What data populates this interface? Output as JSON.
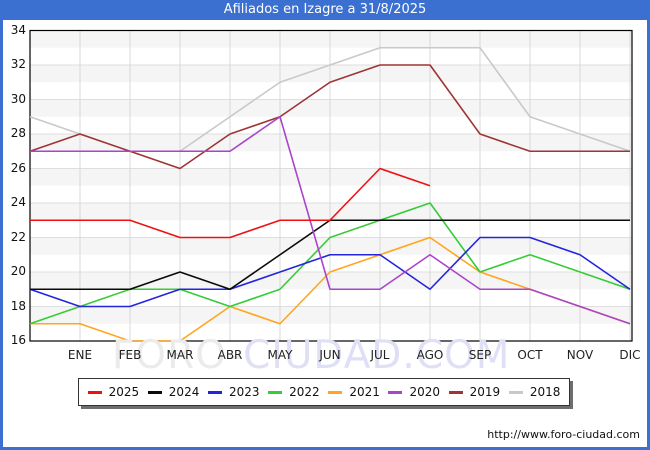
{
  "title": "Afiliados en Izagre a 31/8/2025",
  "watermark": {
    "part1": "FORO-",
    "part2": "CIUDAD.COM"
  },
  "footer_url": "http://www.foro-ciudad.com",
  "colors": {
    "frame_blue": "#3b70d0",
    "band_gray": "#f5f5f5",
    "grid_h": "#dedede",
    "grid_v": "#d8d8d8",
    "plot_border": "#000000"
  },
  "chart_data": {
    "type": "line",
    "title": "Afiliados en Izagre a 31/8/2025",
    "x_categories": [
      "ENE",
      "FEB",
      "MAR",
      "ABR",
      "MAY",
      "JUN",
      "JUL",
      "AGO",
      "SEP",
      "OCT",
      "NOV",
      "DIC"
    ],
    "y_ticks": [
      34,
      32,
      30,
      28,
      26,
      24,
      22,
      20,
      18,
      16
    ],
    "ylim": [
      16,
      34
    ],
    "grid": true,
    "legend_position": "bottom",
    "axis_start_note": "each line starts at the y-axis with the previous December value",
    "series": [
      {
        "name": "2025",
        "color": "#ee1111",
        "start": 23,
        "values": [
          23,
          23,
          22,
          22,
          23,
          23,
          26,
          25
        ]
      },
      {
        "name": "2024",
        "color": "#0a0a0a",
        "start": 19,
        "values": [
          19,
          19,
          20,
          19,
          21,
          23,
          23,
          23,
          23,
          23,
          23,
          23
        ]
      },
      {
        "name": "2023",
        "color": "#2424dd",
        "start": 19,
        "values": [
          18,
          18,
          19,
          19,
          20,
          21,
          21,
          19,
          22,
          22,
          21,
          19
        ]
      },
      {
        "name": "2022",
        "color": "#35cc35",
        "start": 17,
        "values": [
          18,
          19,
          19,
          18,
          19,
          22,
          23,
          24,
          20,
          21,
          20,
          19
        ]
      },
      {
        "name": "2021",
        "color": "#ffa51e",
        "start": 17,
        "values": [
          17,
          16,
          16,
          18,
          17,
          20,
          21,
          22,
          20,
          19,
          18,
          17
        ]
      },
      {
        "name": "2020",
        "color": "#aa44cc",
        "start": 27,
        "values": [
          27,
          27,
          27,
          27,
          29,
          19,
          19,
          21,
          19,
          19,
          18,
          17
        ]
      },
      {
        "name": "2019",
        "color": "#9e3434",
        "start": 27,
        "values": [
          28,
          27,
          26,
          28,
          29,
          31,
          32,
          32,
          28,
          27,
          27,
          27
        ]
      },
      {
        "name": "2018",
        "color": "#c9c9c9",
        "start": 29,
        "values": [
          28,
          27,
          27,
          29,
          31,
          32,
          33,
          33,
          33,
          29,
          28,
          27
        ]
      }
    ]
  }
}
